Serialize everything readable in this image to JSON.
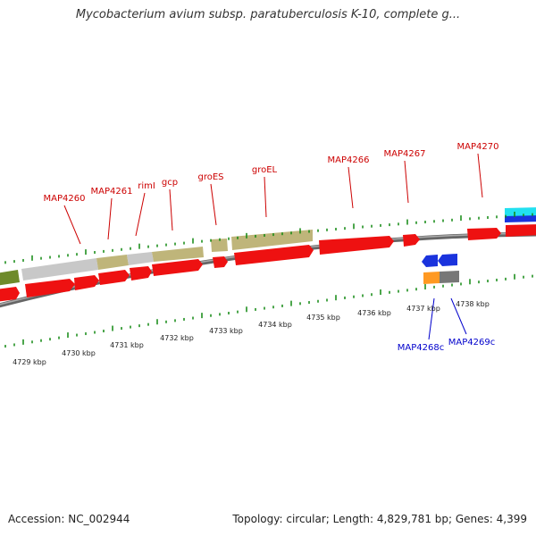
{
  "title": "Mycobacterium avium subsp. paratuberculosis K-10, complete g...",
  "footer": {
    "accession": "Accession: NC_002944",
    "stats": "Topology: circular; Length: 4,829,781 bp; Genes: 4,399"
  },
  "colors": {
    "cds": "#ee1111",
    "cds_reverse": "#1a33dd",
    "label_forward": "#cc0000",
    "label_reverse": "#0000cc",
    "tick": "#118811",
    "backbone": "#888888"
  },
  "forward_labels": [
    {
      "name": "MAP4260"
    },
    {
      "name": "MAP4261"
    },
    {
      "name": "rimI"
    },
    {
      "name": "gcp"
    },
    {
      "name": "groES"
    },
    {
      "name": "groEL"
    },
    {
      "name": "MAP4266"
    },
    {
      "name": "MAP4267"
    },
    {
      "name": "MAP4270"
    }
  ],
  "reverse_labels": [
    {
      "name": "MAP4268c"
    },
    {
      "name": "MAP4269c"
    }
  ],
  "kbp_labels": [
    {
      "text": "4729 kbp"
    },
    {
      "text": "4730 kbp"
    },
    {
      "text": "4731 kbp"
    },
    {
      "text": "4732 kbp"
    },
    {
      "text": "4733 kbp"
    },
    {
      "text": "4734 kbp"
    },
    {
      "text": "4735 kbp"
    },
    {
      "text": "4736 kbp"
    },
    {
      "text": "4737 kbp"
    },
    {
      "text": "4738 kbp"
    }
  ]
}
